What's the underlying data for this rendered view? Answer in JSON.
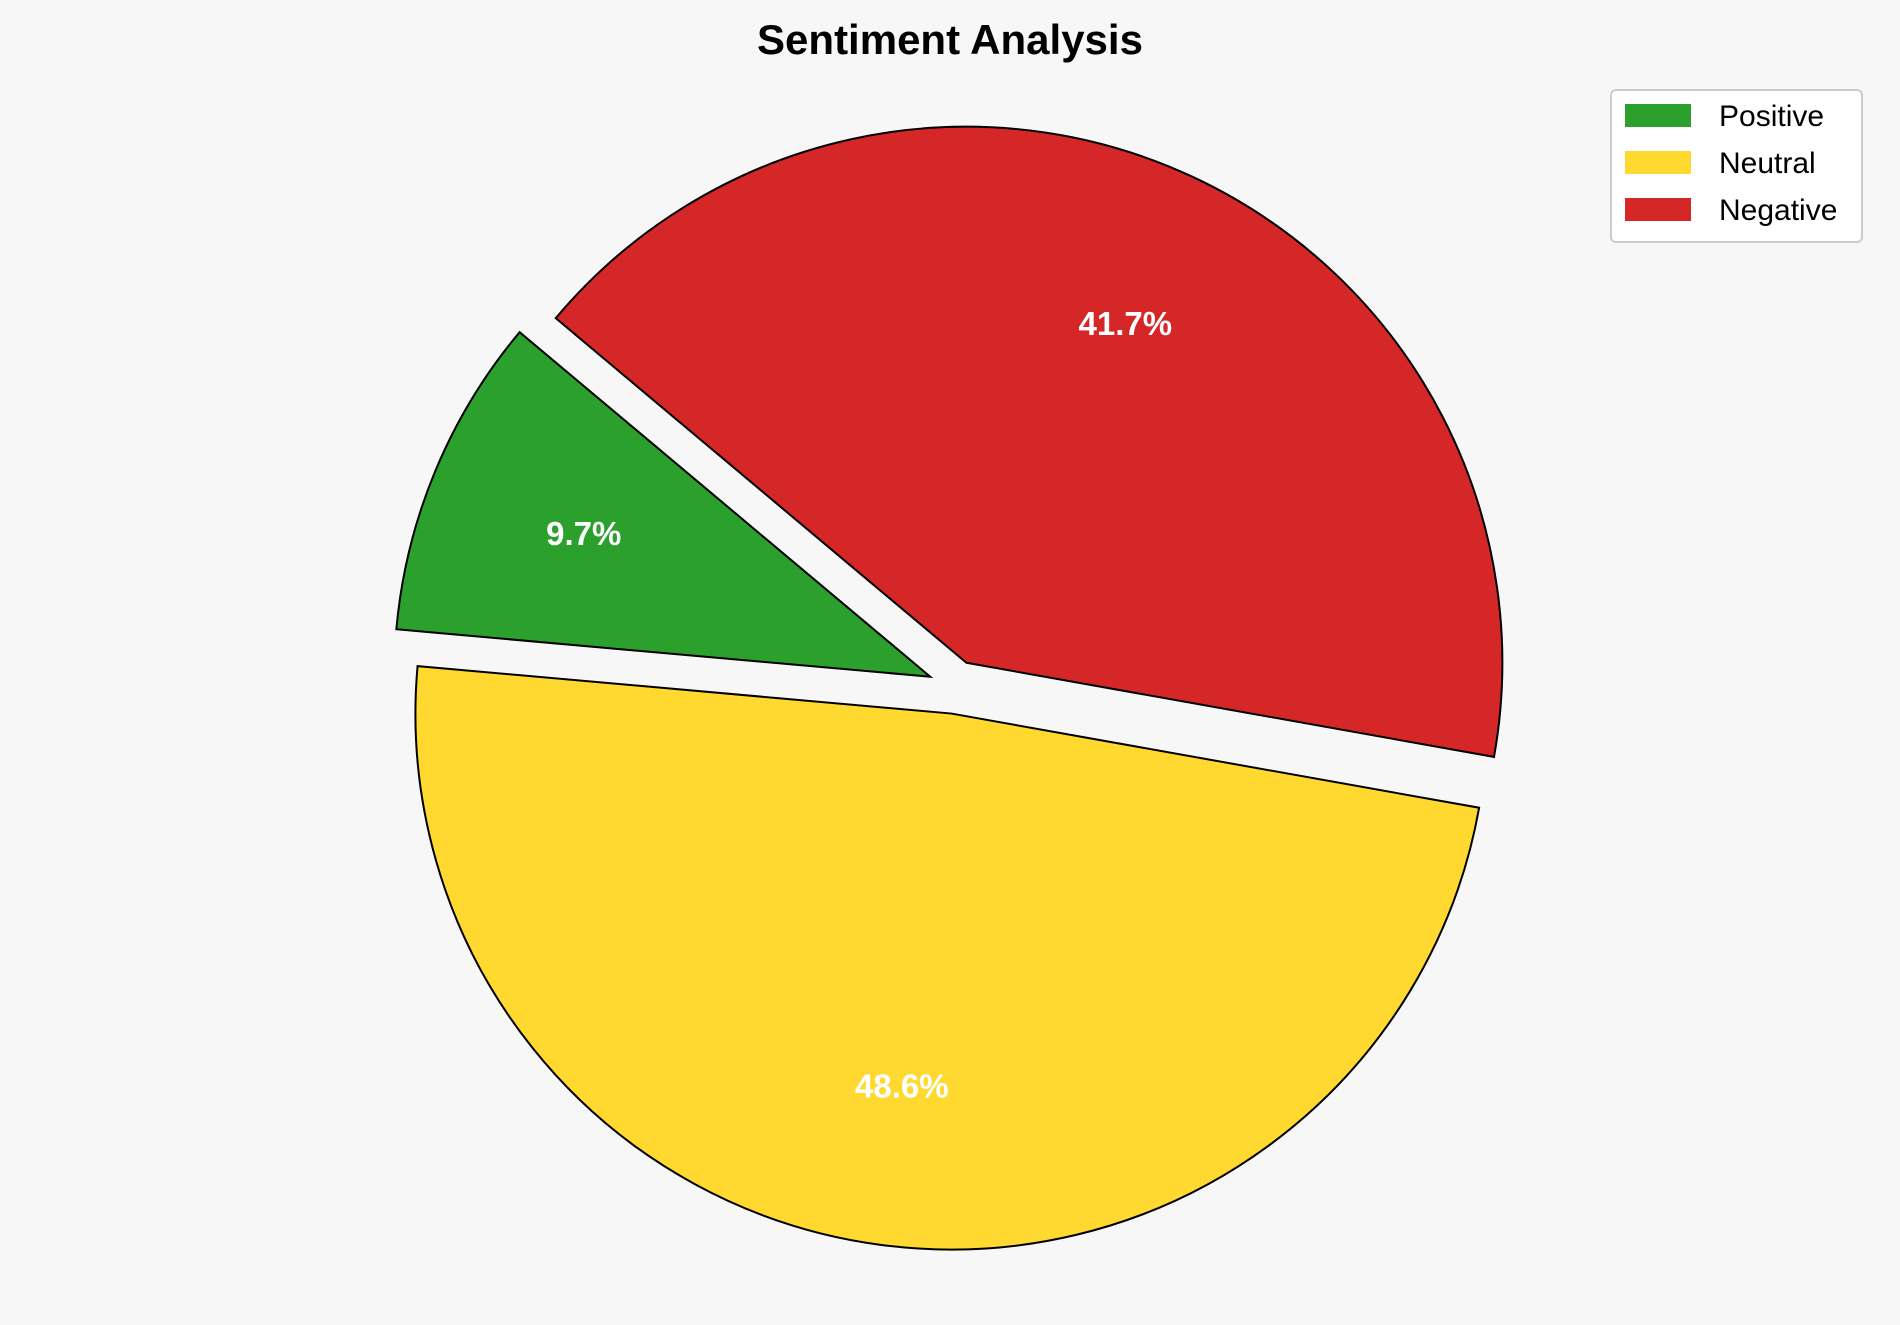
{
  "chart_data": {
    "type": "pie",
    "title": "Sentiment Analysis",
    "categories": [
      "Positive",
      "Neutral",
      "Negative"
    ],
    "values": [
      9.7,
      48.6,
      41.7
    ],
    "labels": [
      "9.7%",
      "48.6%",
      "41.7%"
    ],
    "colors": [
      "#2ca02c",
      "#ffd92f",
      "#d62728"
    ],
    "start_angle_deg": 140,
    "direction": "counterclockwise",
    "explode": [
      0.05,
      0.05,
      0.05
    ],
    "legend_position": "top-right"
  }
}
